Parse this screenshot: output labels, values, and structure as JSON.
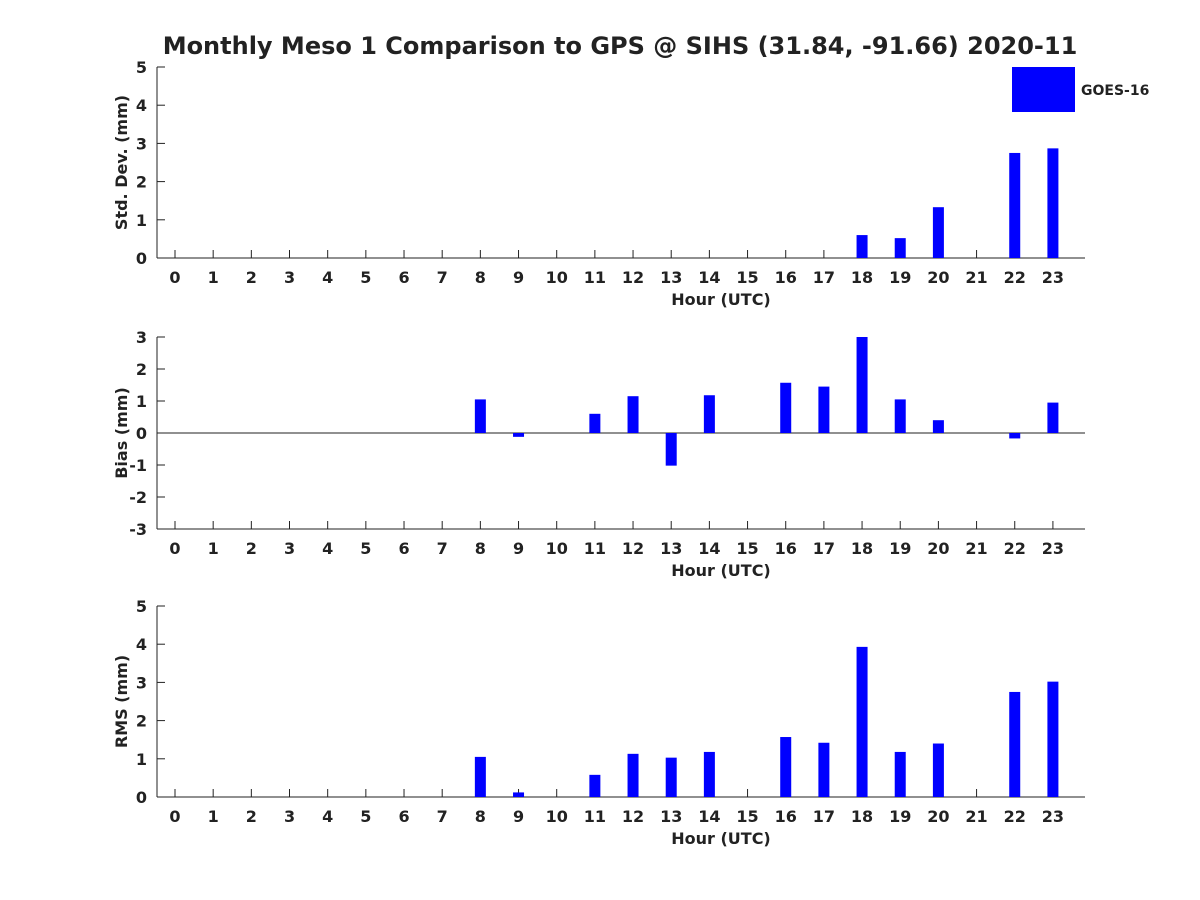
{
  "title": "Monthly Meso 1 Comparison to GPS @ SIHS (31.84, -91.66) 2020-11",
  "legend": {
    "label": "GOES-16",
    "color": "#0000ff",
    "placement": "top-right"
  },
  "chart_data": [
    {
      "type": "bar",
      "ylabel": "Std. Dev. (mm)",
      "xlabel": "Hour (UTC)",
      "ylim": [
        0,
        5
      ],
      "yticks": [
        "0",
        "1",
        "2",
        "3",
        "4",
        "5"
      ],
      "categories": [
        "0",
        "1",
        "2",
        "3",
        "4",
        "5",
        "6",
        "7",
        "8",
        "9",
        "10",
        "11",
        "12",
        "13",
        "14",
        "15",
        "16",
        "17",
        "18",
        "19",
        "20",
        "21",
        "22",
        "23"
      ],
      "series": [
        {
          "name": "GOES-16",
          "color": "#0000ff",
          "values": [
            null,
            null,
            null,
            null,
            null,
            null,
            null,
            null,
            null,
            null,
            null,
            null,
            null,
            null,
            null,
            null,
            null,
            null,
            0.6,
            0.52,
            1.33,
            null,
            2.75,
            2.87
          ]
        }
      ]
    },
    {
      "type": "bar",
      "ylabel": "Bias (mm)",
      "xlabel": "Hour (UTC)",
      "ylim": [
        -3,
        3
      ],
      "yticks": [
        "-3",
        "-2",
        "-1",
        "0",
        "1",
        "2",
        "3"
      ],
      "zero_line": true,
      "categories": [
        "0",
        "1",
        "2",
        "3",
        "4",
        "5",
        "6",
        "7",
        "8",
        "9",
        "10",
        "11",
        "12",
        "13",
        "14",
        "15",
        "16",
        "17",
        "18",
        "19",
        "20",
        "21",
        "22",
        "23"
      ],
      "series": [
        {
          "name": "GOES-16",
          "color": "#0000ff",
          "values": [
            null,
            null,
            null,
            null,
            null,
            null,
            null,
            null,
            1.05,
            -0.12,
            null,
            0.6,
            1.15,
            -1.02,
            1.18,
            null,
            1.57,
            1.45,
            3.0,
            1.05,
            0.4,
            null,
            -0.17,
            0.95
          ]
        }
      ]
    },
    {
      "type": "bar",
      "ylabel": "RMS (mm)",
      "xlabel": "Hour (UTC)",
      "ylim": [
        0,
        5
      ],
      "yticks": [
        "0",
        "1",
        "2",
        "3",
        "4",
        "5"
      ],
      "categories": [
        "0",
        "1",
        "2",
        "3",
        "4",
        "5",
        "6",
        "7",
        "8",
        "9",
        "10",
        "11",
        "12",
        "13",
        "14",
        "15",
        "16",
        "17",
        "18",
        "19",
        "20",
        "21",
        "22",
        "23"
      ],
      "series": [
        {
          "name": "GOES-16",
          "color": "#0000ff",
          "values": [
            null,
            null,
            null,
            null,
            null,
            null,
            null,
            null,
            1.05,
            0.12,
            null,
            0.58,
            1.13,
            1.03,
            1.18,
            null,
            1.57,
            1.42,
            3.93,
            1.18,
            1.4,
            null,
            2.75,
            3.02
          ]
        }
      ]
    }
  ]
}
